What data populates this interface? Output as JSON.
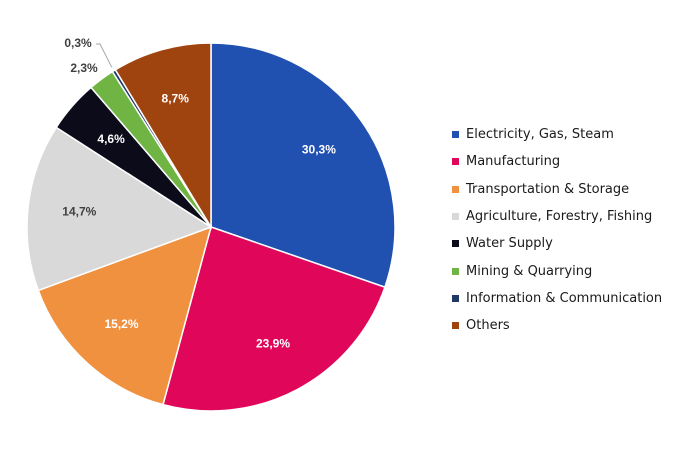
{
  "chart_data": {
    "type": "pie",
    "slices": [
      {
        "label": "Electricity, Gas, Steam",
        "value": 30.3,
        "value_text": "30,3%",
        "color": "#2050B0"
      },
      {
        "label": "Manufacturing",
        "value": 23.9,
        "value_text": "23,9%",
        "color": "#E0075A"
      },
      {
        "label": "Transportation & Storage",
        "value": 15.2,
        "value_text": "15,2%",
        "color": "#F0913F"
      },
      {
        "label": "Agriculture, Forestry, Fishing",
        "value": 14.7,
        "value_text": "14,7%",
        "color": "#D9D9D9"
      },
      {
        "label": "Water Supply",
        "value": 4.6,
        "value_text": "4,6%",
        "color": "#0B0B1A"
      },
      {
        "label": "Mining & Quarrying",
        "value": 2.3,
        "value_text": "2,3%",
        "color": "#70B443"
      },
      {
        "label": "Information & Communication",
        "value": 0.3,
        "value_text": "0,3%",
        "color": "#203864"
      },
      {
        "label": "Others",
        "value": 8.7,
        "value_text": "8,7%",
        "color": "#A0440F"
      }
    ],
    "legend_position": "right"
  }
}
